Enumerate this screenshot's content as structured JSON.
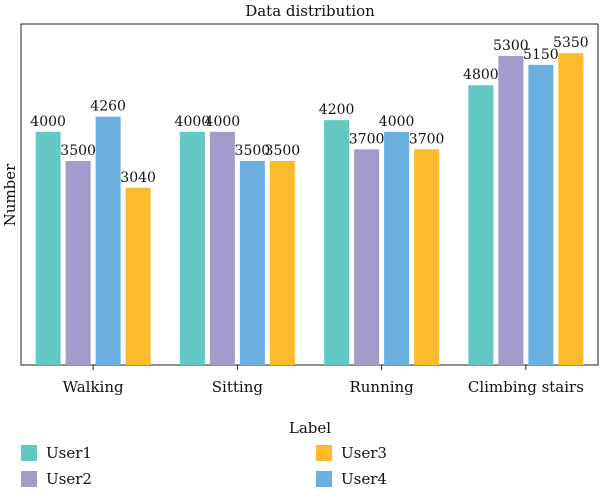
{
  "chart_data": {
    "type": "bar",
    "title": "Data distribution",
    "xlabel": "Label",
    "ylabel": "Number",
    "categories": [
      "Walking",
      "Sitting",
      "Running",
      "Climbing stairs"
    ],
    "ylim": [
      0,
      5850
    ],
    "grid": false,
    "legend_placement": "bottom",
    "series": [
      {
        "name": "User1",
        "color": "#63c8c4",
        "values": [
          4000,
          4000,
          4200,
          4800
        ]
      },
      {
        "name": "User2",
        "color": "#a49bcc",
        "values": [
          3500,
          4000,
          3700,
          5300
        ]
      },
      {
        "name": "User4",
        "color": "#6aafe0",
        "values": [
          4260,
          3500,
          4000,
          5150
        ]
      },
      {
        "name": "User3",
        "color": "#fbbb2c",
        "values": [
          3040,
          3500,
          3700,
          5350
        ]
      }
    ],
    "legend_order": [
      "User1",
      "User2",
      "User3",
      "User4"
    ]
  }
}
